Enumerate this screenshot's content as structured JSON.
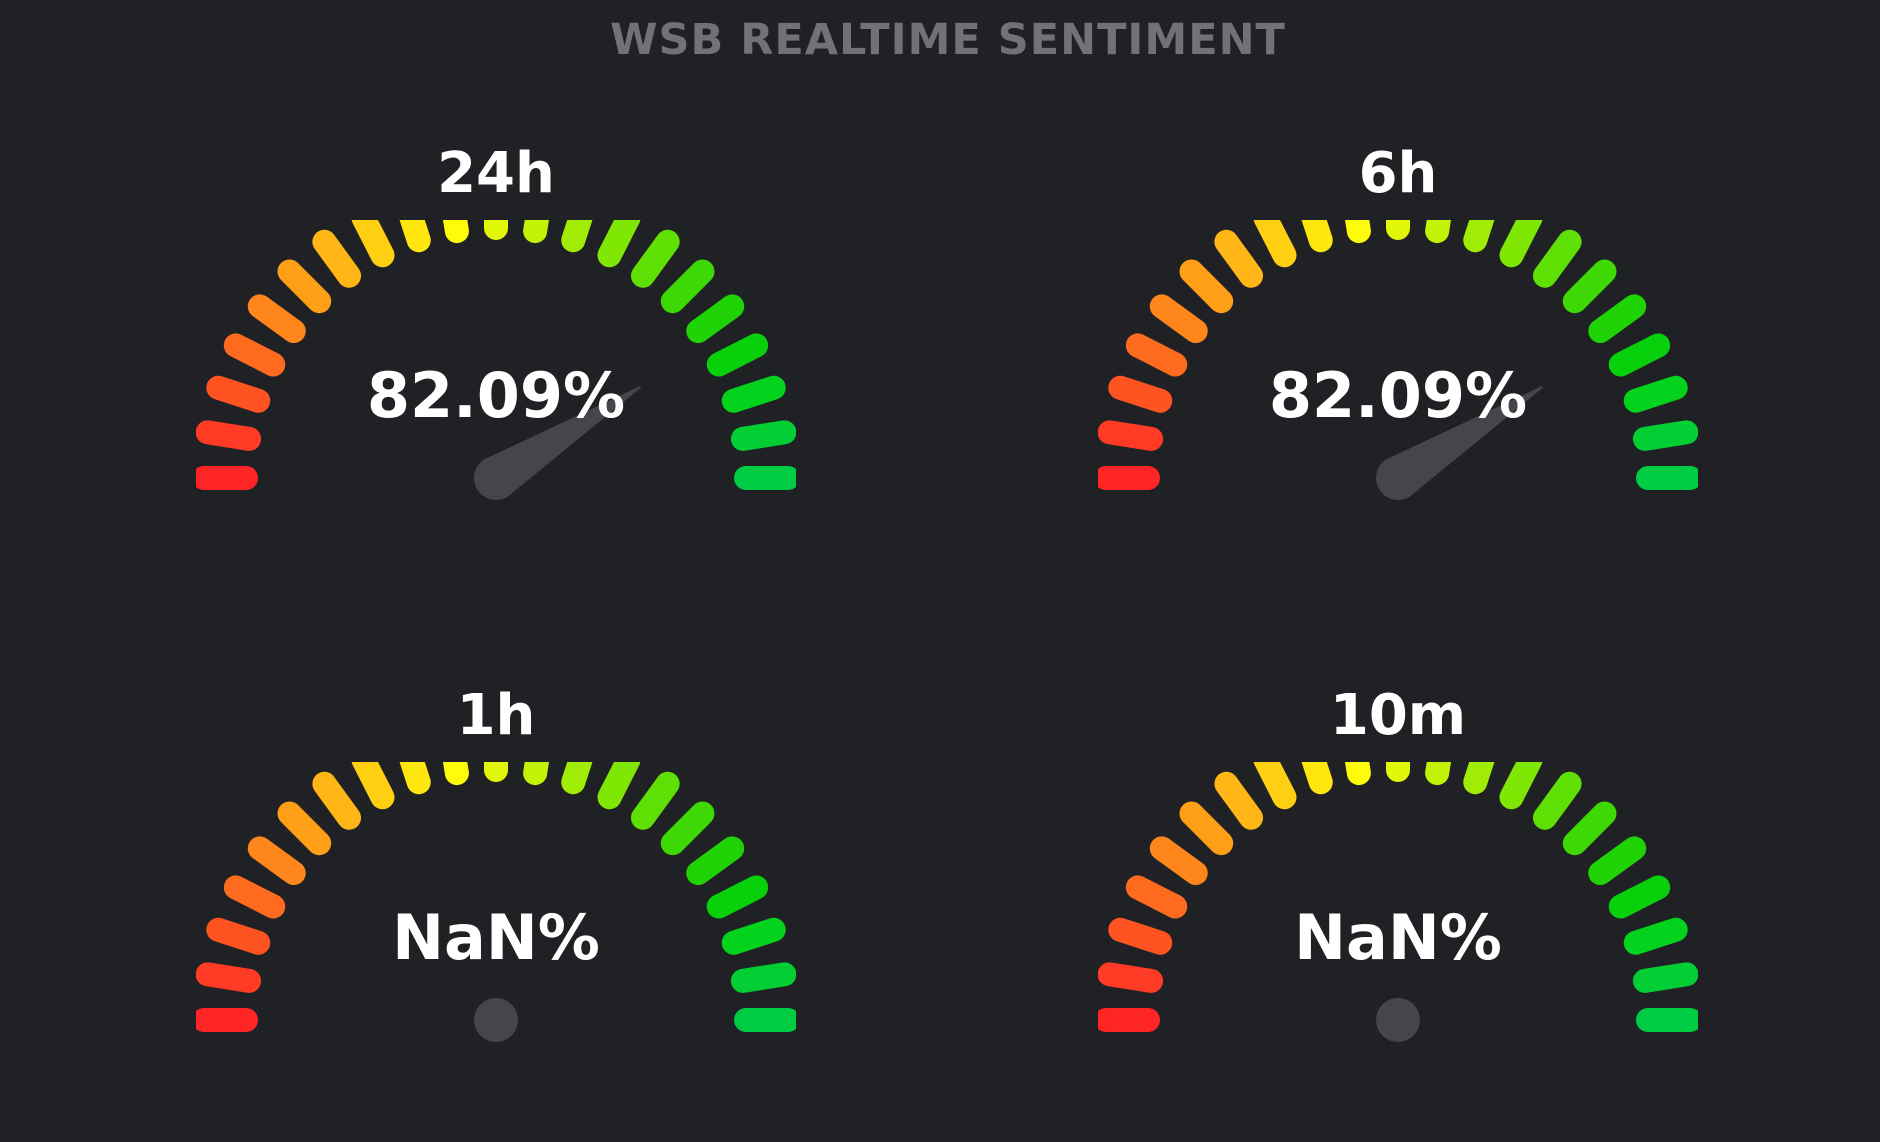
{
  "page": {
    "title": "WSB REALTIME SENTIMENT"
  },
  "gauges": [
    {
      "id": "24h",
      "label": "24h",
      "value_text": "82.09%",
      "value": 82.09
    },
    {
      "id": "6h",
      "label": "6h",
      "value_text": "82.09%",
      "value": 82.09
    },
    {
      "id": "1h",
      "label": "1h",
      "value_text": "NaN%",
      "value": null
    },
    {
      "id": "10m",
      "label": "10m",
      "value_text": "NaN%",
      "value": null
    }
  ],
  "colors": {
    "background": "#202124",
    "title": "#717275",
    "text": "#ffffff",
    "needle": "#45464b",
    "scale": [
      "#ff2525",
      "#ff3a25",
      "#ff5322",
      "#ff6b1e",
      "#ff861b",
      "#ff9f18",
      "#ffb616",
      "#ffcf12",
      "#ffe60e",
      "#fffc0a",
      "#e2f808",
      "#c2f206",
      "#a1ec05",
      "#80e705",
      "#5ee005",
      "#3ed905",
      "#1fd305",
      "#08d10c",
      "#04d31d",
      "#03cf34",
      "#00cc44"
    ]
  }
}
